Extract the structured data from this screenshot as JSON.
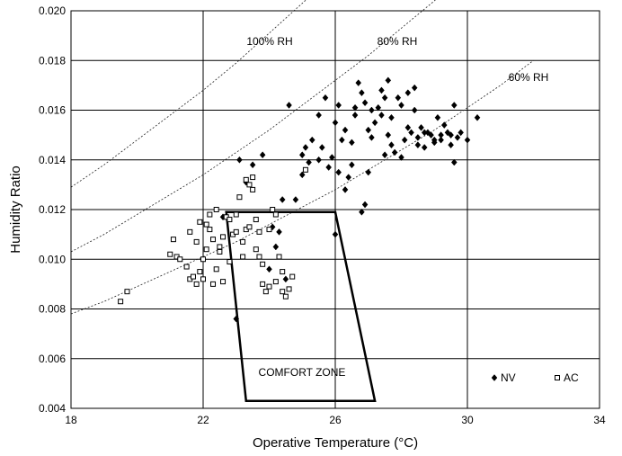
{
  "chart_data": {
    "type": "scatter",
    "title": "",
    "xlabel": "Operative Temperature (°C)",
    "ylabel": "Humidity Ratio",
    "xlim": [
      18,
      34
    ],
    "ylim": [
      0.004,
      0.02
    ],
    "x_ticks": [
      "18",
      "22",
      "26",
      "30",
      "34"
    ],
    "y_ticks": [
      "0.004",
      "0.006",
      "0.008",
      "0.010",
      "0.012",
      "0.014",
      "0.016",
      "0.018",
      "0.020"
    ],
    "grid": true,
    "legend_position": "bottom-right",
    "rh_curves": [
      {
        "label": "100% RH",
        "x": [
          18,
          19,
          20,
          21,
          22,
          23,
          24,
          25,
          26,
          27
        ],
        "y": [
          0.0129,
          0.0138,
          0.0148,
          0.0158,
          0.0168,
          0.0179,
          0.0191,
          0.0203,
          0.0215,
          0.0228
        ]
      },
      {
        "label": "80% RH",
        "x": [
          18,
          19,
          20,
          21,
          22,
          23,
          24,
          25,
          26,
          27,
          28,
          29,
          30
        ],
        "y": [
          0.0103,
          0.011,
          0.0118,
          0.0126,
          0.0134,
          0.0143,
          0.0152,
          0.0162,
          0.0172,
          0.0182,
          0.0193,
          0.0204,
          0.0216
        ]
      },
      {
        "label": "60% RH",
        "x": [
          18,
          19,
          20,
          21,
          22,
          23,
          24,
          25,
          26,
          27,
          28,
          29,
          30,
          31,
          32
        ],
        "y": [
          0.0078,
          0.0083,
          0.0089,
          0.0095,
          0.0101,
          0.0107,
          0.0114,
          0.0121,
          0.0128,
          0.0136,
          0.0144,
          0.0152,
          0.0161,
          0.017,
          0.018
        ]
      }
    ],
    "comfort_zone": {
      "label": "COMFORT ZONE",
      "polygon": [
        [
          22.7,
          0.0119
        ],
        [
          26.0,
          0.0119
        ],
        [
          27.2,
          0.0043
        ],
        [
          23.3,
          0.0043
        ]
      ]
    },
    "series": [
      {
        "name": "NV",
        "marker": "diamond",
        "x": [
          22.6,
          23.0,
          23.3,
          23.5,
          23.8,
          24.2,
          24.4,
          24.6,
          24.8,
          25.0,
          25.2,
          25.3,
          25.5,
          25.6,
          25.7,
          25.8,
          25.9,
          26.0,
          26.1,
          26.2,
          26.3,
          26.4,
          26.5,
          26.6,
          26.7,
          26.8,
          26.9,
          27.0,
          27.1,
          27.2,
          27.3,
          27.4,
          27.5,
          27.6,
          27.7,
          27.8,
          27.9,
          28.0,
          28.1,
          28.2,
          28.3,
          28.4,
          28.5,
          28.6,
          28.7,
          28.8,
          28.9,
          29.0,
          29.1,
          29.2,
          29.3,
          29.4,
          29.5,
          29.6,
          29.7,
          29.8,
          30.0,
          30.3,
          24.0,
          24.5,
          25.0,
          25.5,
          26.0,
          26.5,
          27.0,
          27.5,
          28.0,
          28.5,
          29.0,
          29.5,
          26.8,
          26.9,
          27.1,
          27.4,
          27.7,
          28.2,
          28.7,
          29.2,
          29.6,
          24.3,
          23.1,
          24.1,
          25.1,
          26.1,
          26.3,
          26.6,
          27.6,
          28.4
        ],
        "y": [
          0.0117,
          0.0076,
          0.0131,
          0.0138,
          0.0142,
          0.0105,
          0.0124,
          0.0162,
          0.0124,
          0.0142,
          0.0139,
          0.0148,
          0.0158,
          0.0145,
          0.0165,
          0.0137,
          0.0141,
          0.0155,
          0.0162,
          0.0148,
          0.0152,
          0.0133,
          0.0147,
          0.0158,
          0.0171,
          0.0167,
          0.0163,
          0.0152,
          0.016,
          0.0155,
          0.0161,
          0.0168,
          0.0165,
          0.015,
          0.0157,
          0.0143,
          0.0165,
          0.0162,
          0.0148,
          0.0167,
          0.0151,
          0.016,
          0.0149,
          0.0153,
          0.0145,
          0.0151,
          0.015,
          0.0148,
          0.0157,
          0.015,
          0.0154,
          0.0151,
          0.0146,
          0.0162,
          0.0149,
          0.0151,
          0.0148,
          0.0157,
          0.0096,
          0.0092,
          0.0134,
          0.014,
          0.011,
          0.0138,
          0.0135,
          0.0142,
          0.0141,
          0.0146,
          0.0147,
          0.015,
          0.0119,
          0.0122,
          0.0149,
          0.0158,
          0.0146,
          0.0153,
          0.0151,
          0.0148,
          0.0139,
          0.0111,
          0.014,
          0.0113,
          0.0145,
          0.0135,
          0.0128,
          0.0161,
          0.0172,
          0.0169
        ]
      },
      {
        "name": "AC",
        "marker": "square",
        "x": [
          19.5,
          19.7,
          21.0,
          21.1,
          21.2,
          21.3,
          21.5,
          21.6,
          21.7,
          21.8,
          21.9,
          22.0,
          22.1,
          22.2,
          22.3,
          22.4,
          22.5,
          22.6,
          22.7,
          22.8,
          22.9,
          23.0,
          23.1,
          23.2,
          23.3,
          23.4,
          23.5,
          23.6,
          23.7,
          23.8,
          23.9,
          24.0,
          24.1,
          24.2,
          24.3,
          24.4,
          24.5,
          24.6,
          24.7,
          25.1,
          21.6,
          21.8,
          22.0,
          22.2,
          22.4,
          22.6,
          22.8,
          23.0,
          23.2,
          23.4,
          23.6,
          23.8,
          24.0,
          24.2,
          22.1,
          22.3,
          21.9,
          22.5,
          23.3,
          23.5,
          23.7,
          24.4
        ],
        "y": [
          0.0083,
          0.0087,
          0.0102,
          0.0108,
          0.0101,
          0.01,
          0.0097,
          0.0092,
          0.0093,
          0.009,
          0.0095,
          0.0092,
          0.0104,
          0.0112,
          0.0108,
          0.012,
          0.0103,
          0.0109,
          0.0117,
          0.0116,
          0.011,
          0.0111,
          0.0125,
          0.0101,
          0.0112,
          0.013,
          0.0133,
          0.0116,
          0.0101,
          0.009,
          0.0087,
          0.0112,
          0.012,
          0.0118,
          0.0101,
          0.0095,
          0.0085,
          0.0088,
          0.0093,
          0.0136,
          0.0111,
          0.0107,
          0.01,
          0.0118,
          0.0096,
          0.0091,
          0.0099,
          0.0118,
          0.0107,
          0.0113,
          0.0104,
          0.0098,
          0.0089,
          0.0091,
          0.0114,
          0.009,
          0.0115,
          0.0105,
          0.0132,
          0.0128,
          0.0111,
          0.0087
        ]
      }
    ]
  }
}
